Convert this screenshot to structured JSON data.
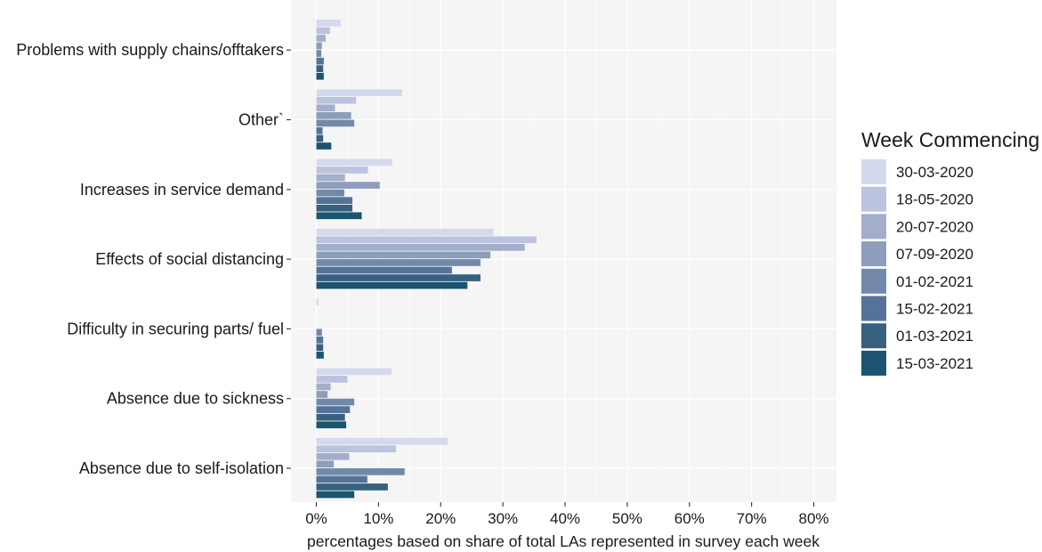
{
  "chart_data": {
    "type": "bar",
    "orientation": "horizontal",
    "title": "",
    "xlabel": "percentages based on share of total LAs represented in survey each week",
    "ylabel": "",
    "xlim": [
      0,
      80
    ],
    "x_ticks": [
      "0%",
      "10%",
      "20%",
      "30%",
      "40%",
      "50%",
      "60%",
      "70%",
      "80%"
    ],
    "categories": [
      "Problems  with supply chains/offtakers",
      "Other`",
      "Increases  in service demand",
      "Effects  of social distancing",
      "Difficulty in securing parts/ fuel",
      "Absence  due to sickness",
      "Absence  due to self-isolation"
    ],
    "legend": {
      "title": "Week Commencing",
      "position": "right"
    },
    "grid": true,
    "series": [
      {
        "name": "30-03-2020",
        "color": "#d5d9ee",
        "values": [
          3.9,
          13.8,
          12.2,
          28.5,
          0.3,
          12.1,
          21.1
        ]
      },
      {
        "name": "18-05-2020",
        "color": "#bcc3de",
        "values": [
          2.2,
          6.4,
          8.3,
          35.4,
          0,
          5.0,
          12.8
        ]
      },
      {
        "name": "20-07-2020",
        "color": "#a3aecb",
        "values": [
          1.5,
          3.0,
          4.6,
          33.5,
          0,
          2.3,
          5.3
        ]
      },
      {
        "name": "07-09-2020",
        "color": "#8e9dbb",
        "values": [
          0.9,
          5.6,
          10.2,
          28.0,
          0,
          1.8,
          2.8
        ]
      },
      {
        "name": "01-02-2021",
        "color": "#7389a9",
        "values": [
          0.8,
          6.1,
          4.5,
          26.4,
          0.9,
          6.1,
          14.2
        ]
      },
      {
        "name": "15-02-2021",
        "color": "#55739a",
        "values": [
          1.2,
          1.0,
          5.8,
          21.8,
          1.1,
          5.4,
          8.2
        ]
      },
      {
        "name": "01-03-2021",
        "color": "#38607f",
        "values": [
          1.1,
          1.1,
          5.8,
          26.4,
          1.1,
          4.6,
          11.5
        ]
      },
      {
        "name": "15-03-2021",
        "color": "#1b5371",
        "values": [
          1.2,
          2.4,
          7.3,
          24.3,
          1.2,
          4.8,
          6.1
        ]
      }
    ]
  }
}
